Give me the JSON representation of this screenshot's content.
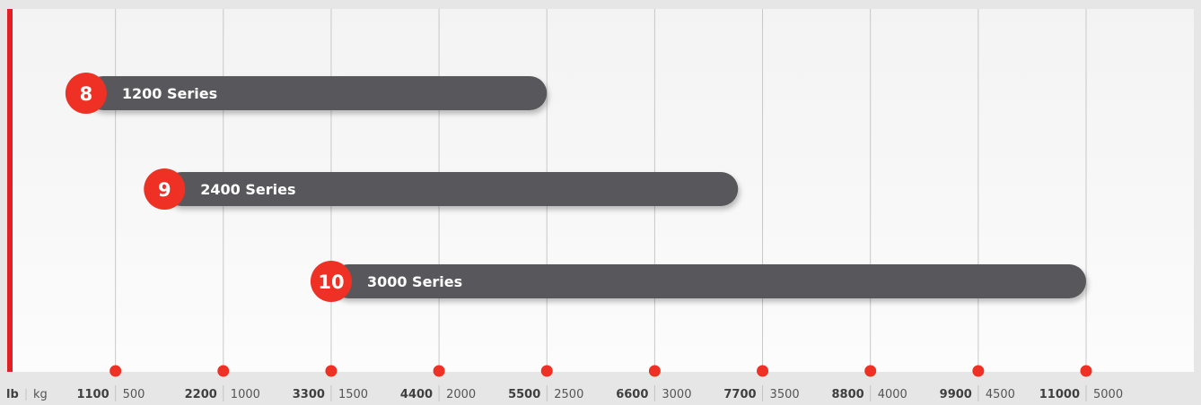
{
  "chart_data": {
    "type": "bar",
    "orientation": "horizontal",
    "x_unit_primary": "lb",
    "x_unit_secondary": "kg",
    "x_ticks": [
      {
        "lb": "1100",
        "kg": "500"
      },
      {
        "lb": "2200",
        "kg": "1000"
      },
      {
        "lb": "3300",
        "kg": "1500"
      },
      {
        "lb": "4400",
        "kg": "2000"
      },
      {
        "lb": "5500",
        "kg": "2500"
      },
      {
        "lb": "6600",
        "kg": "3000"
      },
      {
        "lb": "7700",
        "kg": "3500"
      },
      {
        "lb": "8800",
        "kg": "4000"
      },
      {
        "lb": "9900",
        "kg": "4500"
      },
      {
        "lb": "11000",
        "kg": "5000"
      }
    ],
    "xlim": [
      0,
      11000
    ],
    "bars": [
      {
        "badge": "8",
        "label": "1200 Series",
        "start_lb": 800,
        "end_lb": 5500
      },
      {
        "badge": "9",
        "label": "2400 Series",
        "start_lb": 1600,
        "end_lb": 7450
      },
      {
        "badge": "10",
        "label": "3000 Series",
        "start_lb": 3300,
        "end_lb": 11000
      }
    ],
    "grid": true,
    "colors": {
      "bar": "#58595b",
      "badge": "#ee3124",
      "accent": "#e31e24",
      "grid": "#c8c8c8",
      "panel": "#fafafa"
    }
  }
}
